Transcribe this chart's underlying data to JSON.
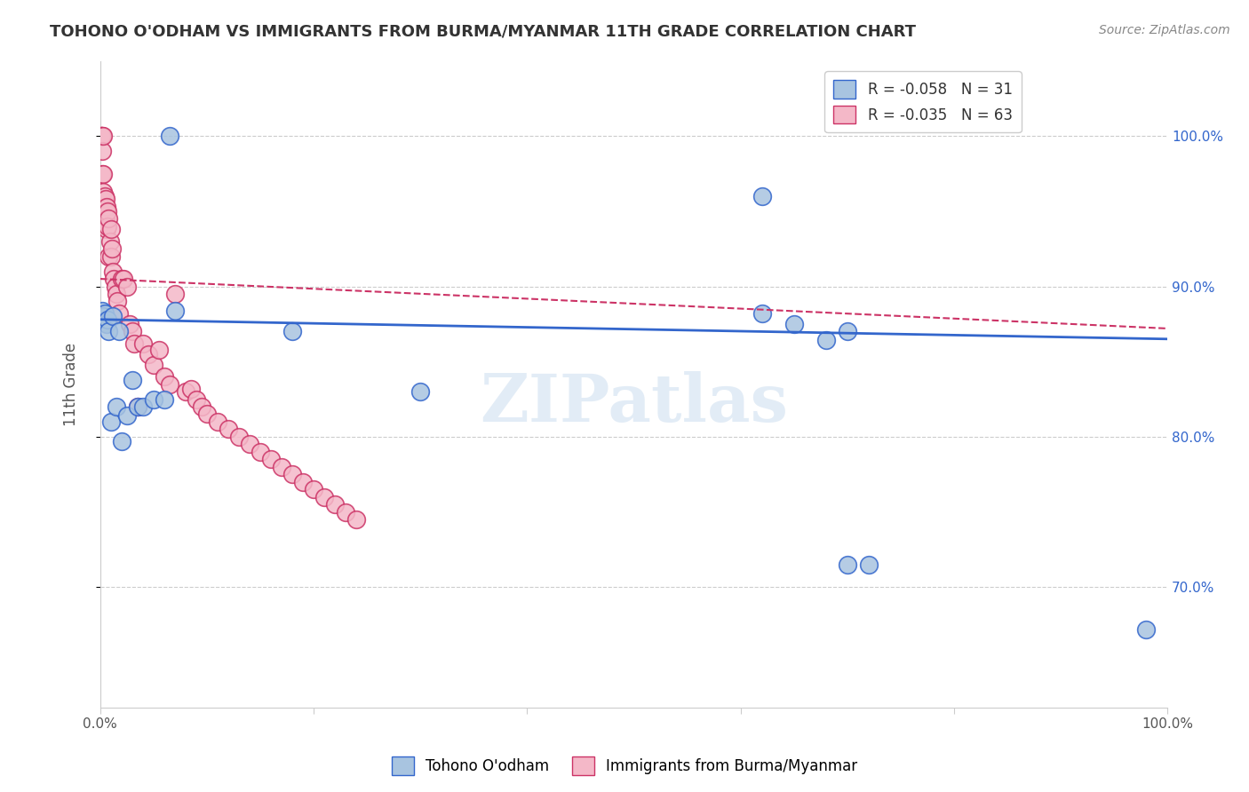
{
  "title": "TOHONO O'ODHAM VS IMMIGRANTS FROM BURMA/MYANMAR 11TH GRADE CORRELATION CHART",
  "source": "Source: ZipAtlas.com",
  "ylabel": "11th Grade",
  "ytick_labels": [
    "70.0%",
    "80.0%",
    "90.0%",
    "100.0%"
  ],
  "ytick_values": [
    0.7,
    0.8,
    0.9,
    1.0
  ],
  "watermark": "ZIPatlas",
  "legend": {
    "blue_label": "Tohono O'odham",
    "pink_label": "Immigrants from Burma/Myanmar",
    "blue_R": "-0.058",
    "blue_N": "31",
    "pink_R": "-0.035",
    "pink_N": "63"
  },
  "blue_scatter_x": [
    0.001,
    0.002,
    0.003,
    0.004,
    0.005,
    0.006,
    0.007,
    0.008,
    0.01,
    0.012,
    0.015,
    0.018,
    0.02,
    0.025,
    0.03,
    0.035,
    0.04,
    0.05,
    0.06,
    0.065,
    0.07,
    0.18,
    0.3,
    0.62,
    0.65,
    0.68,
    0.7,
    0.72,
    0.98,
    0.62,
    0.7
  ],
  "blue_scatter_y": [
    0.878,
    0.884,
    0.88,
    0.882,
    0.876,
    0.875,
    0.878,
    0.87,
    0.81,
    0.88,
    0.82,
    0.87,
    0.797,
    0.814,
    0.838,
    0.82,
    0.82,
    0.825,
    0.825,
    1.0,
    0.884,
    0.87,
    0.83,
    0.882,
    0.875,
    0.864,
    0.715,
    0.715,
    0.672,
    0.96,
    0.87
  ],
  "pink_scatter_x": [
    0.001,
    0.001,
    0.001,
    0.001,
    0.002,
    0.002,
    0.002,
    0.003,
    0.003,
    0.003,
    0.004,
    0.004,
    0.005,
    0.005,
    0.006,
    0.006,
    0.007,
    0.007,
    0.008,
    0.008,
    0.009,
    0.01,
    0.01,
    0.011,
    0.012,
    0.013,
    0.014,
    0.015,
    0.016,
    0.018,
    0.02,
    0.022,
    0.025,
    0.028,
    0.03,
    0.032,
    0.035,
    0.04,
    0.045,
    0.05,
    0.055,
    0.06,
    0.065,
    0.07,
    0.08,
    0.085,
    0.09,
    0.095,
    0.1,
    0.11,
    0.12,
    0.13,
    0.14,
    0.15,
    0.16,
    0.17,
    0.18,
    0.19,
    0.2,
    0.21,
    0.22,
    0.23,
    0.24
  ],
  "pink_scatter_y": [
    1.0,
    1.0,
    1.0,
    0.958,
    1.0,
    0.99,
    0.975,
    1.0,
    0.975,
    0.963,
    0.96,
    0.952,
    0.958,
    0.945,
    0.953,
    0.938,
    0.95,
    0.94,
    0.945,
    0.92,
    0.93,
    0.938,
    0.92,
    0.925,
    0.91,
    0.905,
    0.9,
    0.895,
    0.89,
    0.882,
    0.905,
    0.905,
    0.9,
    0.875,
    0.87,
    0.862,
    0.82,
    0.862,
    0.855,
    0.848,
    0.858,
    0.84,
    0.835,
    0.895,
    0.83,
    0.832,
    0.825,
    0.82,
    0.815,
    0.81,
    0.805,
    0.8,
    0.795,
    0.79,
    0.785,
    0.78,
    0.775,
    0.77,
    0.765,
    0.76,
    0.755,
    0.75,
    0.745
  ],
  "blue_color": "#a8c4e0",
  "pink_color": "#f4b8c8",
  "blue_line_color": "#3366cc",
  "pink_line_color": "#cc3366",
  "background_color": "#ffffff",
  "grid_color": "#cccccc",
  "xlim": [
    0.0,
    1.0
  ],
  "ylim": [
    0.62,
    1.05
  ],
  "blue_trend": [
    0.878,
    0.865
  ],
  "pink_trend": [
    0.905,
    0.872
  ]
}
